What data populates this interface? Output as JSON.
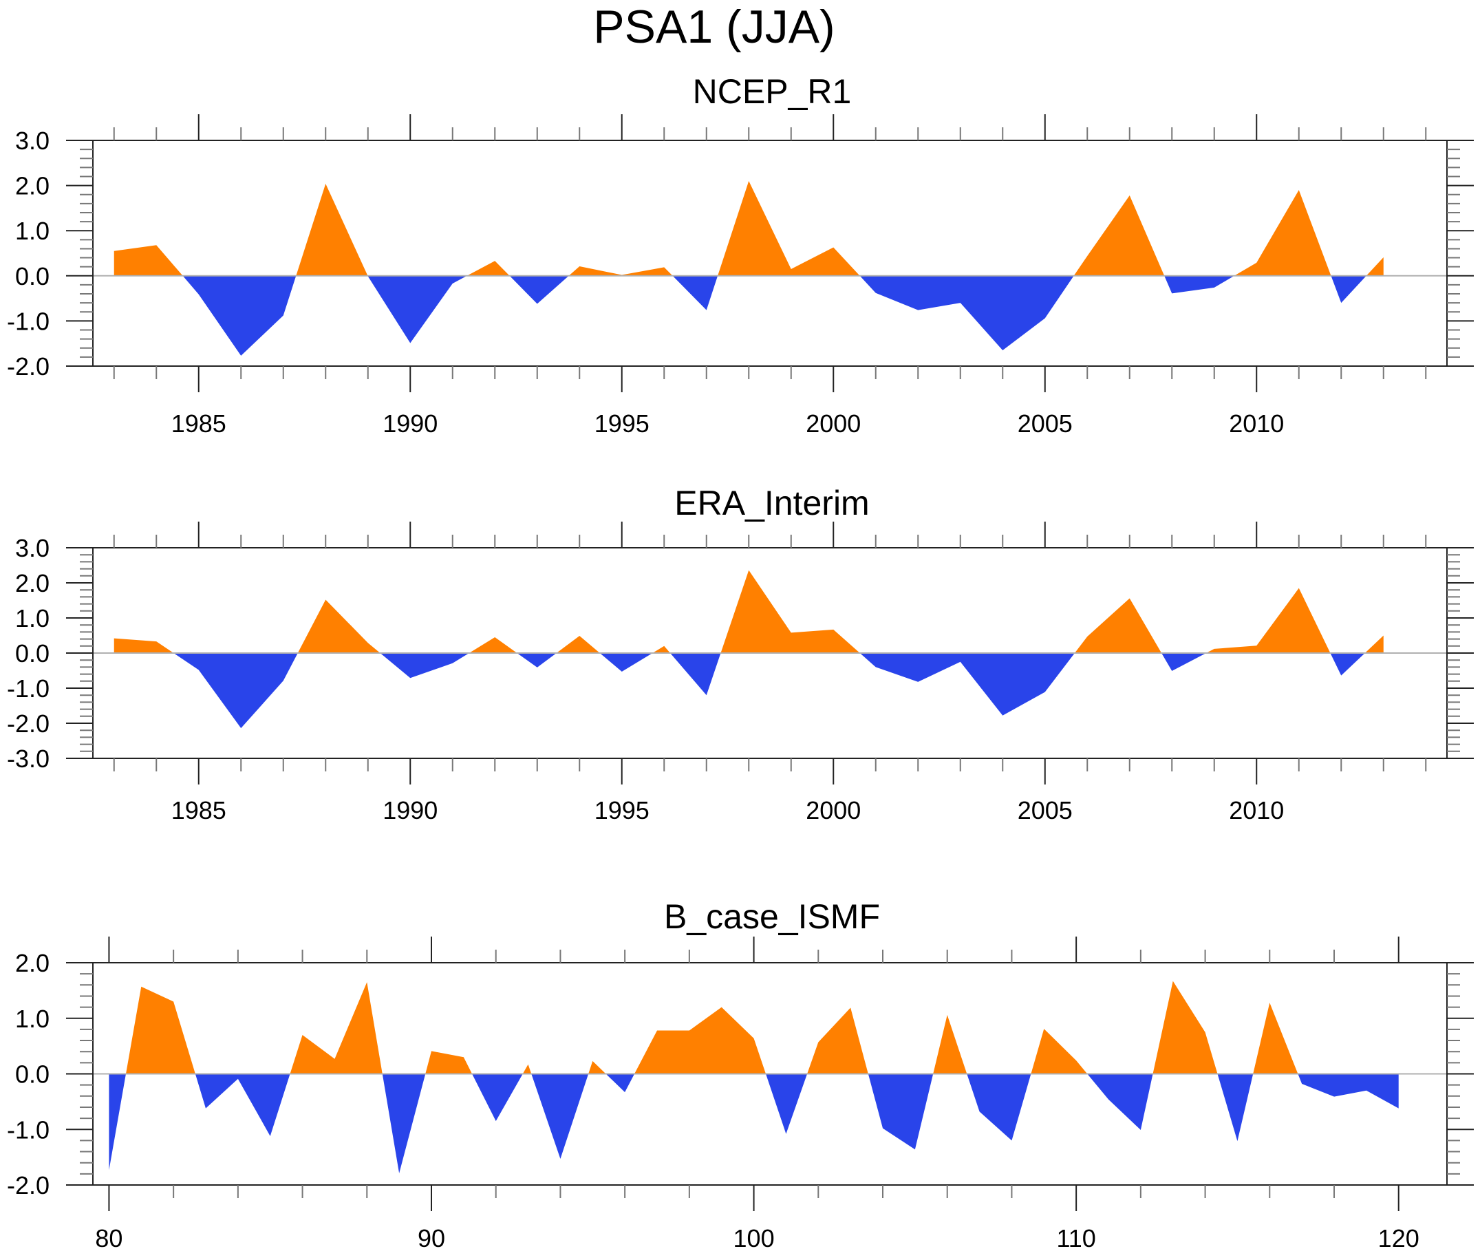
{
  "figure": {
    "title": "PSA1 (JJA)"
  },
  "colors": {
    "positive": "#FF8000",
    "negative": "#2944EA",
    "zero_line": "#B0B0B0",
    "frame": "#222222"
  },
  "chart_data": [
    {
      "type": "area",
      "title": "NCEP_R1",
      "xlabel": "",
      "ylabel": "",
      "xlim": [
        1982.5,
        2014.5
      ],
      "ylim": [
        -2.0,
        3.0
      ],
      "x_major_ticks": [
        1985,
        1990,
        1995,
        2000,
        2005,
        2010
      ],
      "x_tick_labels": [
        "1985",
        "1990",
        "1995",
        "2000",
        "2005",
        "2010"
      ],
      "x_minor_step": 1,
      "y_major_ticks": [
        3.0,
        2.0,
        1.0,
        0.0,
        -1.0,
        -2.0
      ],
      "y_tick_labels": [
        "3.0",
        "2.0",
        "1.0",
        "0.0",
        "-1.0",
        "-2.0"
      ],
      "y_minor_step": 0.2,
      "fill": "positive orange above zero, negative blue below zero",
      "x": [
        1983,
        1984,
        1985,
        1986,
        1987,
        1988,
        1989,
        1990,
        1991,
        1992,
        1993,
        1994,
        1995,
        1996,
        1997,
        1998,
        1999,
        2000,
        2001,
        2002,
        2003,
        2004,
        2005,
        2006,
        2007,
        2008,
        2009,
        2010,
        2011,
        2012,
        2013
      ],
      "values": [
        0.55,
        0.68,
        -0.41,
        -1.77,
        -0.88,
        2.04,
        -0.01,
        -1.49,
        -0.17,
        0.33,
        -0.62,
        0.21,
        0.02,
        0.19,
        -0.76,
        2.1,
        0.15,
        0.63,
        -0.38,
        -0.76,
        -0.6,
        -1.65,
        -0.94,
        0.44,
        1.78,
        -0.39,
        -0.26,
        0.29,
        1.9,
        -0.6,
        0.41
      ]
    },
    {
      "type": "area",
      "title": "ERA_Interim",
      "xlabel": "",
      "ylabel": "",
      "xlim": [
        1982.5,
        2014.5
      ],
      "ylim": [
        -3.0,
        3.0
      ],
      "x_major_ticks": [
        1985,
        1990,
        1995,
        2000,
        2005,
        2010
      ],
      "x_tick_labels": [
        "1985",
        "1990",
        "1995",
        "2000",
        "2005",
        "2010"
      ],
      "x_minor_step": 1,
      "y_major_ticks": [
        3.0,
        2.0,
        1.0,
        0.0,
        -1.0,
        -2.0,
        -3.0
      ],
      "y_tick_labels": [
        "3.0",
        "2.0",
        "1.0",
        "0.0",
        "-1.0",
        "-2.0",
        "-3.0"
      ],
      "y_minor_step": 0.2,
      "fill": "positive orange above zero, negative blue below zero",
      "x": [
        1983,
        1984,
        1985,
        1986,
        1987,
        1988,
        1989,
        1990,
        1991,
        1992,
        1993,
        1994,
        1995,
        1996,
        1997,
        1998,
        1999,
        2000,
        2001,
        2002,
        2003,
        2004,
        2005,
        2006,
        2007,
        2008,
        2009,
        2010,
        2011,
        2012,
        2013
      ],
      "values": [
        0.42,
        0.33,
        -0.48,
        -2.14,
        -0.79,
        1.52,
        0.29,
        -0.71,
        -0.29,
        0.45,
        -0.41,
        0.49,
        -0.53,
        0.2,
        -1.2,
        2.36,
        0.58,
        0.67,
        -0.4,
        -0.82,
        -0.25,
        -1.78,
        -1.11,
        0.47,
        1.56,
        -0.51,
        0.12,
        0.21,
        1.85,
        -0.64,
        0.5
      ]
    },
    {
      "type": "area",
      "title": "B_case_ISMF",
      "xlabel": "",
      "ylabel": "",
      "xlim": [
        79.5,
        121.5
      ],
      "ylim": [
        -2.0,
        2.0
      ],
      "x_major_ticks": [
        80,
        90,
        100,
        110,
        120
      ],
      "x_tick_labels": [
        "80",
        "90",
        "100",
        "110",
        "120"
      ],
      "x_minor_step": 2,
      "y_major_ticks": [
        2.0,
        1.0,
        0.0,
        -1.0,
        -2.0
      ],
      "y_tick_labels": [
        "2.0",
        "1.0",
        "0.0",
        "-1.0",
        "-2.0"
      ],
      "y_minor_step": 0.2,
      "fill": "positive orange above zero, negative blue below zero",
      "x": [
        80,
        81,
        82,
        83,
        84,
        85,
        86,
        87,
        88,
        89,
        90,
        91,
        92,
        93,
        94,
        95,
        96,
        97,
        98,
        99,
        100,
        101,
        102,
        103,
        104,
        105,
        106,
        107,
        108,
        109,
        110,
        111,
        112,
        113,
        114,
        115,
        116,
        117,
        118,
        119,
        120
      ],
      "values": [
        -1.73,
        1.57,
        1.3,
        -0.62,
        -0.09,
        -1.12,
        0.7,
        0.27,
        1.65,
        -1.79,
        0.41,
        0.3,
        -0.85,
        0.17,
        -1.53,
        0.23,
        -0.33,
        0.78,
        0.78,
        1.2,
        0.64,
        -1.08,
        0.57,
        1.19,
        -0.98,
        -1.36,
        1.06,
        -0.68,
        -1.2,
        0.81,
        0.24,
        -0.46,
        -1.01,
        1.67,
        0.75,
        -1.21,
        1.28,
        -0.18,
        -0.41,
        -0.3,
        -0.62
      ]
    }
  ]
}
